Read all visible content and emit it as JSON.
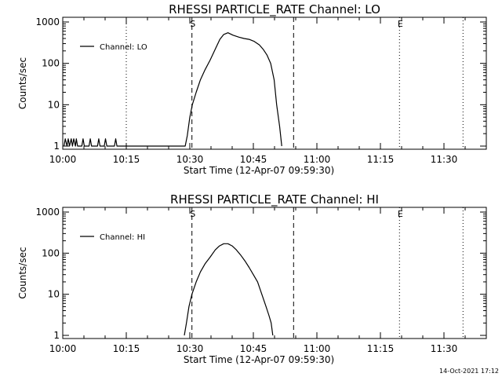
{
  "footer": {
    "timestamp": "14-Oct-2021 17:12"
  },
  "chart_data": [
    {
      "type": "line",
      "title": "RHESSI PARTICLE_RATE Channel: LO",
      "xlabel": "Start Time (12-Apr-07 09:59:30)",
      "ylabel": "Counts/sec",
      "yscale": "log",
      "xlim": [
        0,
        100
      ],
      "ylim": [
        1,
        1000
      ],
      "x_tick_values": [
        0,
        15,
        30,
        45,
        60,
        75,
        90
      ],
      "x_tick_labels": [
        "10:00",
        "10:15",
        "10:30",
        "10:45",
        "11:00",
        "11:15",
        "11:30"
      ],
      "y_tick_values": [
        1,
        10,
        100,
        1000
      ],
      "y_tick_labels": [
        "1",
        "10",
        "100",
        "1000"
      ],
      "legend": {
        "label": "Channel: LO",
        "position": "top-left"
      },
      "markers": [
        {
          "x": 30.5,
          "style": "dashed",
          "label": "S"
        },
        {
          "x": 54.5,
          "style": "dashed",
          "label": ""
        },
        {
          "x": 15,
          "style": "dotted",
          "label": ""
        },
        {
          "x": 79.5,
          "style": "dotted",
          "label": "E"
        },
        {
          "x": 94.5,
          "style": "dotted",
          "label": ""
        }
      ],
      "series": [
        {
          "name": "Channel: LO",
          "x": [
            0.3,
            0.6,
            1.0,
            1.3,
            1.6,
            2.0,
            2.3,
            2.6,
            3.0,
            3.2,
            3.5,
            4.5,
            4.8,
            5.1,
            6.2,
            6.5,
            6.8,
            8.2,
            8.5,
            8.8,
            9.8,
            10.1,
            10.4,
            12.2,
            12.5,
            12.8,
            28.9,
            29.4,
            30.0,
            30.6,
            31.5,
            32.5,
            33.6,
            34.8,
            36.0,
            37.1,
            38.0,
            39.0,
            40.2,
            41.6,
            42.8,
            44.0,
            45.2,
            46.4,
            47.3,
            48.2,
            49.1,
            49.9,
            50.5,
            51.2,
            51.7
          ],
          "y": [
            1,
            1.5,
            1,
            1.5,
            1,
            1.5,
            1,
            1.5,
            1,
            1.5,
            1,
            1,
            1.5,
            1,
            1,
            1.5,
            1,
            1,
            1.5,
            1,
            1,
            1.5,
            1,
            1,
            1.5,
            1,
            1,
            1.8,
            5,
            10,
            20,
            40,
            70,
            120,
            220,
            380,
            500,
            550,
            480,
            430,
            400,
            380,
            340,
            280,
            220,
            160,
            100,
            40,
            10,
            3,
            1
          ]
        }
      ]
    },
    {
      "type": "line",
      "title": "RHESSI PARTICLE_RATE Channel: HI",
      "xlabel": "Start Time (12-Apr-07 09:59:30)",
      "ylabel": "Counts/sec",
      "yscale": "log",
      "xlim": [
        0,
        100
      ],
      "ylim": [
        1,
        1000
      ],
      "x_tick_values": [
        0,
        15,
        30,
        45,
        60,
        75,
        90
      ],
      "x_tick_labels": [
        "10:00",
        "10:15",
        "10:30",
        "10:45",
        "11:00",
        "11:15",
        "11:30"
      ],
      "y_tick_values": [
        1,
        10,
        100,
        1000
      ],
      "y_tick_labels": [
        "1",
        "10",
        "100",
        "1000"
      ],
      "legend": {
        "label": "Channel: HI",
        "position": "top-left"
      },
      "markers": [
        {
          "x": 30.5,
          "style": "dashed",
          "label": "S"
        },
        {
          "x": 54.5,
          "style": "dashed",
          "label": ""
        },
        {
          "x": 79.5,
          "style": "dotted",
          "label": "E"
        },
        {
          "x": 94.5,
          "style": "dotted",
          "label": ""
        }
      ],
      "series": [
        {
          "name": "Channel: HI",
          "x": [
            28.7,
            29.2,
            29.8,
            30.5,
            31.5,
            32.5,
            33.6,
            34.8,
            36.0,
            37.0,
            38.0,
            39.0,
            40.0,
            41.0,
            42.0,
            43.0,
            44.0,
            45.0,
            46.0,
            47.0,
            48.0,
            48.7,
            49.2,
            49.6
          ],
          "y": [
            1,
            2,
            5,
            10,
            20,
            35,
            55,
            80,
            120,
            150,
            170,
            170,
            150,
            120,
            90,
            65,
            45,
            30,
            20,
            10,
            5,
            3,
            2,
            1
          ]
        }
      ]
    }
  ]
}
